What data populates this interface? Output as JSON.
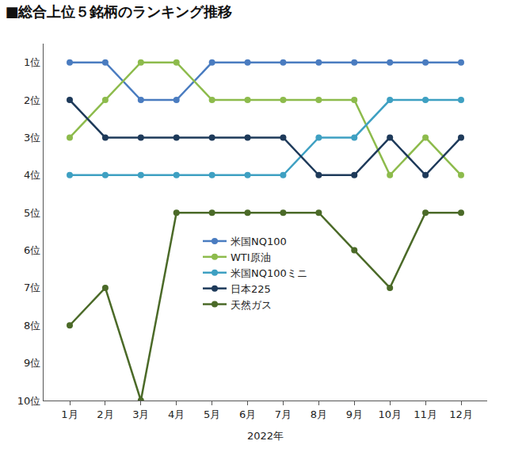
{
  "chart_data": {
    "type": "line",
    "title": "■総合上位５銘柄のランキング推移",
    "x_label": "2022年",
    "categories": [
      "1月",
      "2月",
      "3月",
      "4月",
      "5月",
      "6月",
      "7月",
      "8月",
      "9月",
      "10月",
      "11月",
      "12月"
    ],
    "series": [
      {
        "name": "米国NQ100",
        "color": "#4a7cc0",
        "values": [
          1,
          1,
          2,
          2,
          1,
          1,
          1,
          1,
          1,
          1,
          1,
          1
        ]
      },
      {
        "name": "WTI原油",
        "color": "#8dbb4c",
        "values": [
          3,
          2,
          1,
          1,
          2,
          2,
          2,
          2,
          2,
          4,
          3,
          4
        ]
      },
      {
        "name": "米国NQ100ミニ",
        "color": "#3ea0c2",
        "values": [
          4,
          4,
          4,
          4,
          4,
          4,
          4,
          3,
          3,
          2,
          2,
          2
        ]
      },
      {
        "name": "日本225",
        "color": "#1e3a5a",
        "values": [
          2,
          3,
          3,
          3,
          3,
          3,
          3,
          4,
          4,
          3,
          4,
          3
        ]
      },
      {
        "name": "天然ガス",
        "color": "#4b6a28",
        "values": [
          8,
          7,
          10,
          5,
          5,
          5,
          5,
          5,
          6,
          7,
          5,
          5
        ]
      }
    ],
    "ylim": [
      10,
      0.5
    ],
    "yticks": [
      {
        "value": 1,
        "label": "1位"
      },
      {
        "value": 2,
        "label": "2位"
      },
      {
        "value": 3,
        "label": "3位"
      },
      {
        "value": 4,
        "label": "4位"
      },
      {
        "value": 5,
        "label": "5位"
      },
      {
        "value": 6,
        "label": "6位"
      },
      {
        "value": 7,
        "label": "7位"
      },
      {
        "value": 8,
        "label": "8位"
      },
      {
        "value": 9,
        "label": "9位"
      },
      {
        "value": 10,
        "label": "10位"
      }
    ],
    "grid": false,
    "legend": "center",
    "marker": "circle",
    "line_style": "solid"
  }
}
